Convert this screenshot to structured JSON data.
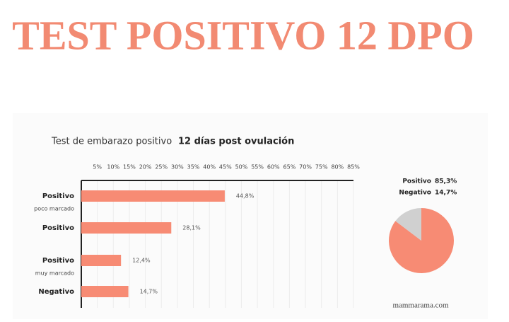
{
  "banner": "TEST POSITIVO 12 DPO",
  "source": "mammarama.com",
  "chart_data": [
    {
      "type": "bar",
      "orientation": "horizontal",
      "title": "Test de embarazo positivo",
      "subtitle": "12 días post ovulación",
      "categories": [
        "Positivo",
        "Positivo",
        "Positivo",
        "Negativo"
      ],
      "category_notes": [
        "poco marcado",
        null,
        "muy marcado",
        null
      ],
      "values": [
        44.8,
        28.1,
        12.4,
        14.7
      ],
      "value_labels": [
        "44,8%",
        "28,1%",
        "12,4%",
        "14,7%"
      ],
      "color": "#f78b74",
      "xlim": [
        0,
        85
      ],
      "xticks": [
        {
          "value": 5,
          "label": "5%"
        },
        {
          "value": 10,
          "label": "10%"
        },
        {
          "value": 15,
          "label": "15%"
        },
        {
          "value": 20,
          "label": "20%"
        },
        {
          "value": 25,
          "label": "25%"
        },
        {
          "value": 30,
          "label": "30%"
        },
        {
          "value": 35,
          "label": "35%"
        },
        {
          "value": 40,
          "label": "40%"
        },
        {
          "value": 45,
          "label": "45%"
        },
        {
          "value": 50,
          "label": "50%"
        },
        {
          "value": 55,
          "label": "55%"
        },
        {
          "value": 60,
          "label": "60%"
        },
        {
          "value": 65,
          "label": "65%"
        },
        {
          "value": 70,
          "label": "70%"
        },
        {
          "value": 75,
          "label": "75%"
        },
        {
          "value": 80,
          "label": "80%"
        },
        {
          "value": 85,
          "label": "85%"
        }
      ],
      "grid": true
    },
    {
      "type": "pie",
      "categories": [
        "Positivo",
        "Negativo"
      ],
      "values": [
        85.3,
        14.7
      ],
      "value_labels": [
        "85,3%",
        "14,7%"
      ],
      "colors": [
        "#f78b74",
        "#d0d0d0"
      ]
    }
  ]
}
